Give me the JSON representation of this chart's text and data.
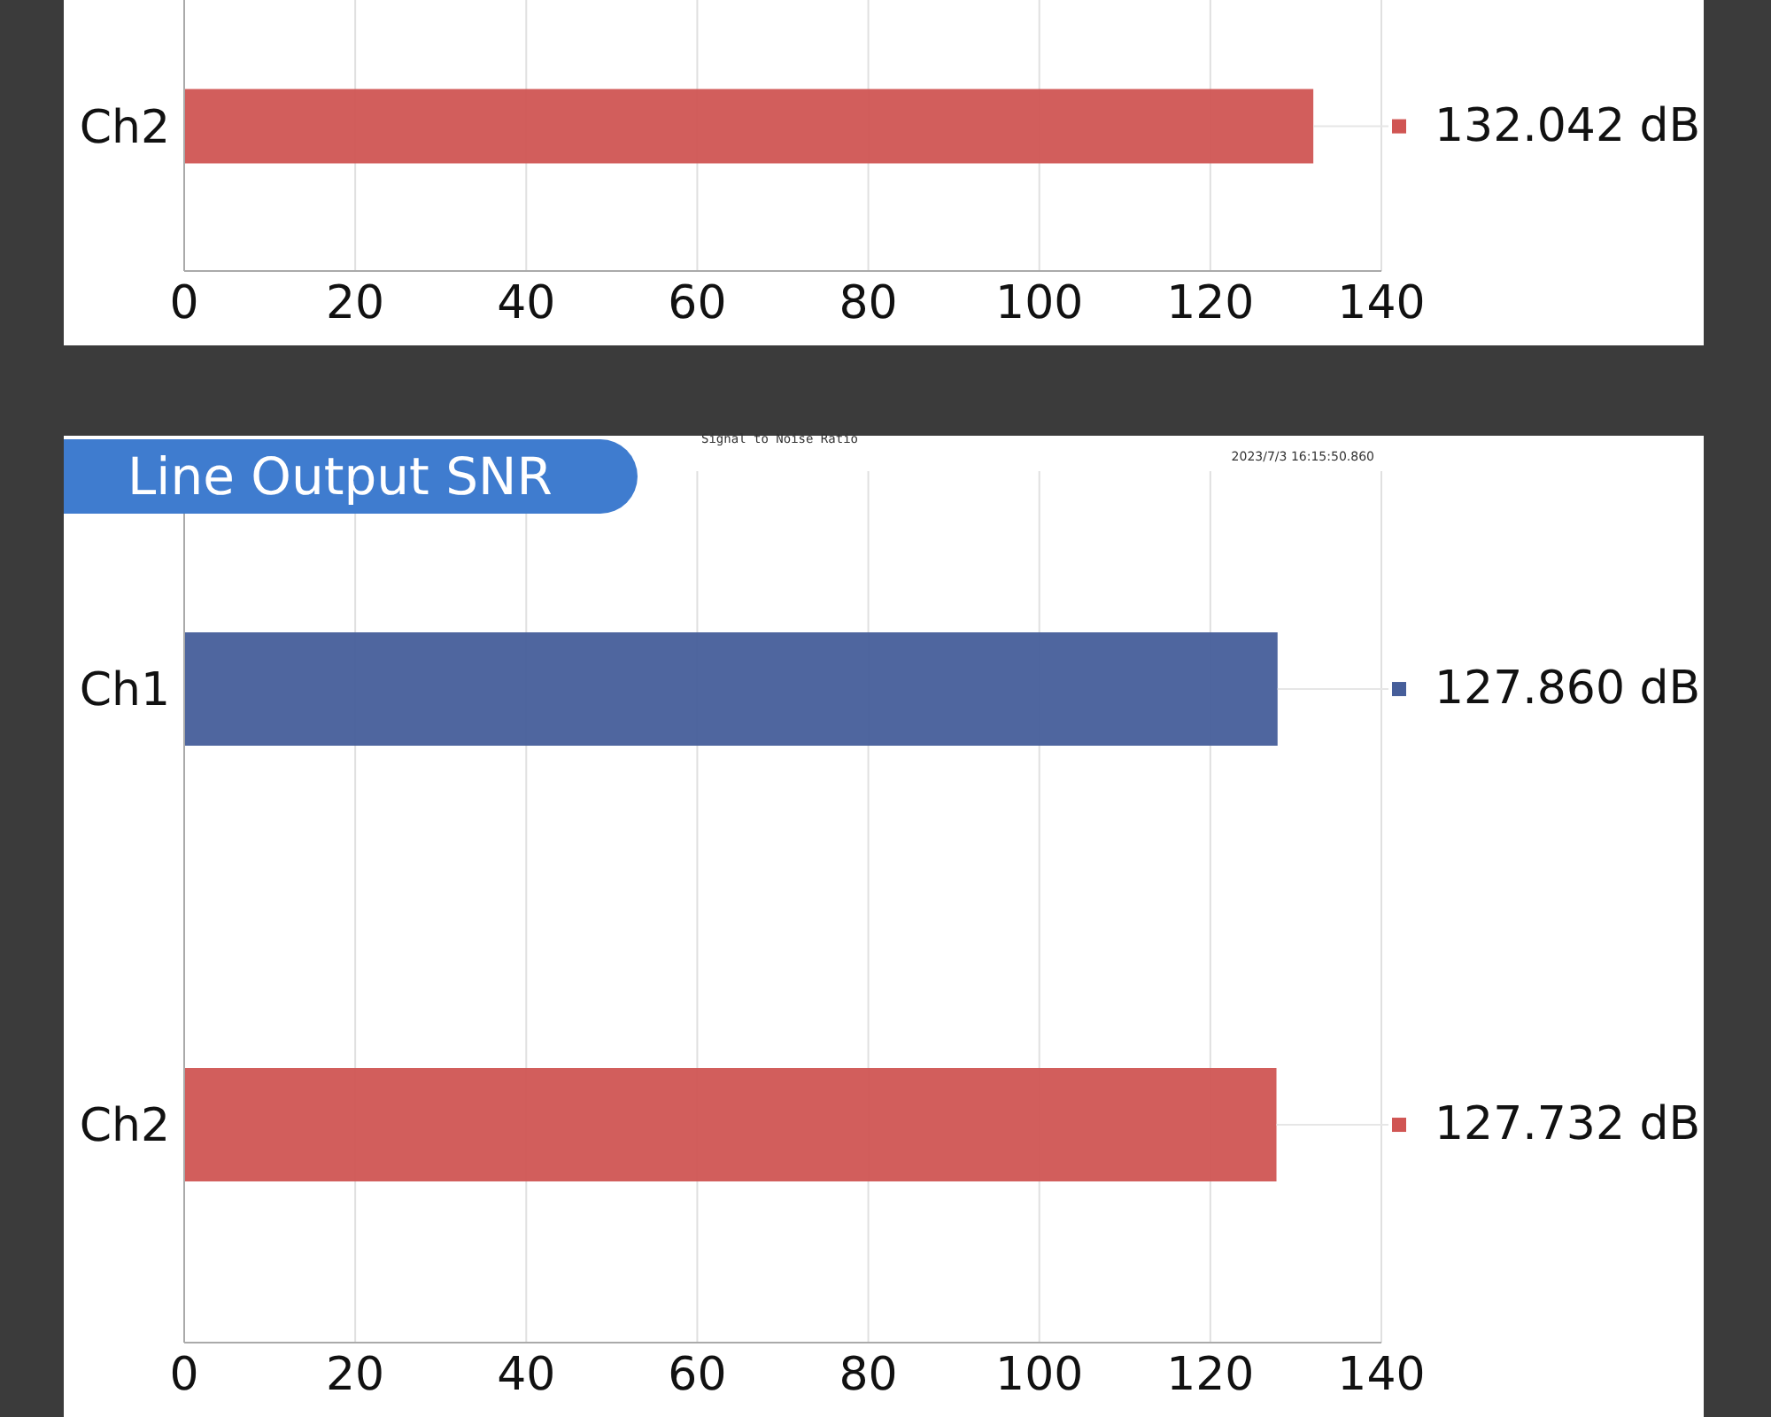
{
  "chart_data": [
    {
      "type": "bar",
      "orientation": "horizontal",
      "categories": [
        "Ch2"
      ],
      "values": [
        132.042
      ],
      "colors": [
        "#d05553"
      ],
      "value_labels": [
        "132.042 dB"
      ],
      "xlim": [
        0,
        140
      ],
      "xticks": [
        0,
        20,
        40,
        60,
        80,
        100,
        120,
        140
      ],
      "grid": "x"
    },
    {
      "type": "bar",
      "orientation": "horizontal",
      "title": "Line Output SNR",
      "subtitle": "Signal to Noise Ratio",
      "annotations": [
        "2023/7/3 16:15:50.860"
      ],
      "categories": [
        "Ch1",
        "Ch2"
      ],
      "values": [
        127.86,
        127.732
      ],
      "colors": [
        "#465e9a",
        "#d05553"
      ],
      "value_labels": [
        "127.860 dB",
        "127.732 dB"
      ],
      "xlim": [
        0,
        140
      ],
      "xticks": [
        0,
        20,
        40,
        60,
        80,
        100,
        120,
        140
      ],
      "grid": "x"
    }
  ]
}
